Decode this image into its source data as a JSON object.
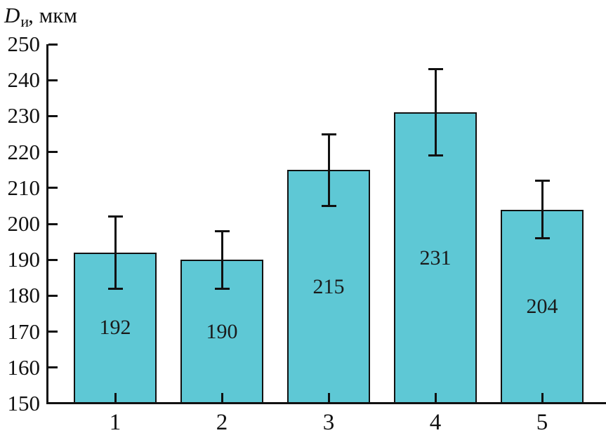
{
  "chart_data": {
    "type": "bar",
    "title": "",
    "ylabel": "Dи, мкм",
    "ylabel_parts": {
      "main": "D",
      "sub": "и",
      "rest": ", мкм"
    },
    "categories": [
      "1",
      "2",
      "3",
      "4",
      "5"
    ],
    "values": [
      192,
      190,
      215,
      231,
      204
    ],
    "value_labels": [
      "192",
      "190",
      "215",
      "231",
      "204"
    ],
    "error_plus": [
      10,
      8,
      10,
      12,
      8
    ],
    "error_minus": [
      10,
      8,
      10,
      12,
      8
    ],
    "ylim": [
      150,
      250
    ],
    "y_ticks": [
      150,
      160,
      170,
      180,
      190,
      200,
      210,
      220,
      230,
      240,
      250
    ],
    "grid": "off",
    "legend": "none",
    "bar_color": "#5ec8d5",
    "bar_border_color": "#111111",
    "axis_color": "#111111",
    "text_color": "#111111"
  }
}
